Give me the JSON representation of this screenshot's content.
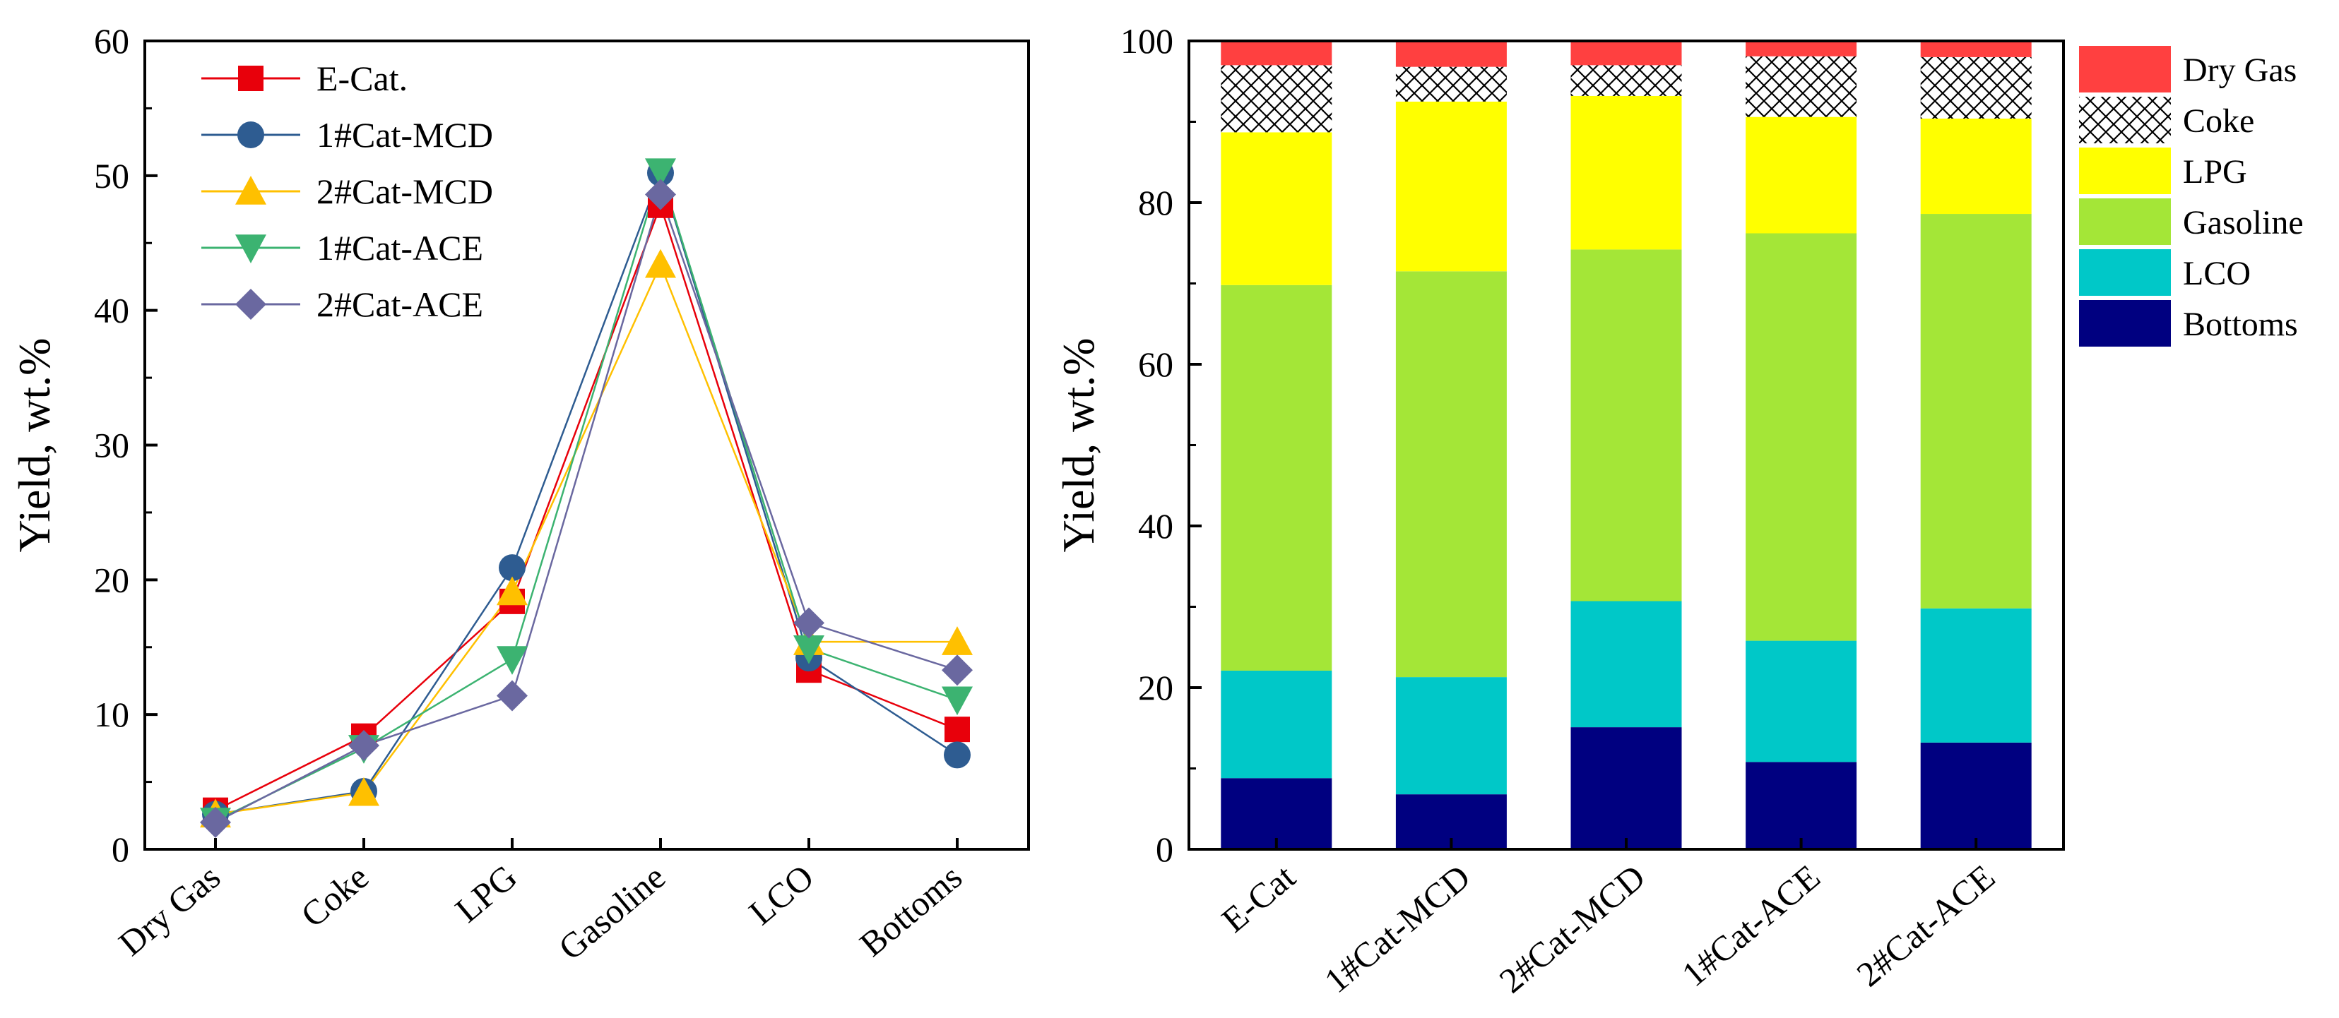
{
  "chart_data": [
    {
      "type": "line",
      "ylabel": "Yield, wt.%",
      "ylim": [
        0,
        60
      ],
      "yticks": [
        0,
        10,
        20,
        30,
        40,
        50,
        60
      ],
      "categories": [
        "Dry Gas",
        "Coke",
        "LPG",
        "Gasoline",
        "LCO",
        "Bottoms"
      ],
      "series": [
        {
          "name": "E-Cat.",
          "color": "#e8000b",
          "marker": "square",
          "values": [
            2.9,
            8.4,
            18.4,
            47.8,
            13.3,
            8.9
          ]
        },
        {
          "name": "1#Cat-MCD",
          "color": "#2e5c91",
          "marker": "circle",
          "values": [
            2.6,
            4.3,
            20.9,
            50.2,
            14.2,
            7.0
          ]
        },
        {
          "name": "2#Cat-MCD",
          "color": "#ffc000",
          "marker": "triangle-up",
          "values": [
            2.6,
            4.2,
            19.1,
            43.4,
            15.4,
            15.4
          ]
        },
        {
          "name": "1#Cat-ACE",
          "color": "#3cb371",
          "marker": "triangle-down",
          "values": [
            2.1,
            7.5,
            14.1,
            50.3,
            14.9,
            11.1
          ]
        },
        {
          "name": "2#Cat-ACE",
          "color": "#6a68a0",
          "marker": "diamond",
          "values": [
            2.0,
            7.7,
            11.4,
            48.6,
            16.8,
            13.3
          ]
        }
      ]
    },
    {
      "type": "bar",
      "stacked": true,
      "ylabel": "Yield, wt.%",
      "ylim": [
        0,
        100
      ],
      "yticks": [
        0,
        20,
        40,
        60,
        80,
        100
      ],
      "categories": [
        "E-Cat",
        "1#Cat-MCD",
        "2#Cat-MCD",
        "1#Cat-ACE",
        "2#Cat-ACE"
      ],
      "series": [
        {
          "name": "Bottoms",
          "color": "#000080",
          "values": [
            8.8,
            6.8,
            15.1,
            10.8,
            13.2
          ]
        },
        {
          "name": "LCO",
          "color": "#00c8c8",
          "values": [
            13.3,
            14.5,
            15.6,
            15.0,
            16.6
          ]
        },
        {
          "name": "Gasoline",
          "color": "#a4e637",
          "values": [
            47.7,
            50.2,
            43.5,
            50.4,
            48.8
          ]
        },
        {
          "name": "LPG",
          "color": "#ffff00",
          "values": [
            18.9,
            21.0,
            19.0,
            14.4,
            11.8
          ]
        },
        {
          "name": "Coke",
          "color": "#ffffff",
          "pattern": "crosshatch",
          "values": [
            8.3,
            4.3,
            3.8,
            7.5,
            7.6
          ]
        },
        {
          "name": "Dry Gas",
          "color": "#ff4040",
          "values": [
            3.0,
            3.2,
            3.0,
            1.9,
            2.0
          ]
        }
      ],
      "legend_order": [
        "Dry Gas",
        "Coke",
        "LPG",
        "Gasoline",
        "LCO",
        "Bottoms"
      ]
    }
  ]
}
